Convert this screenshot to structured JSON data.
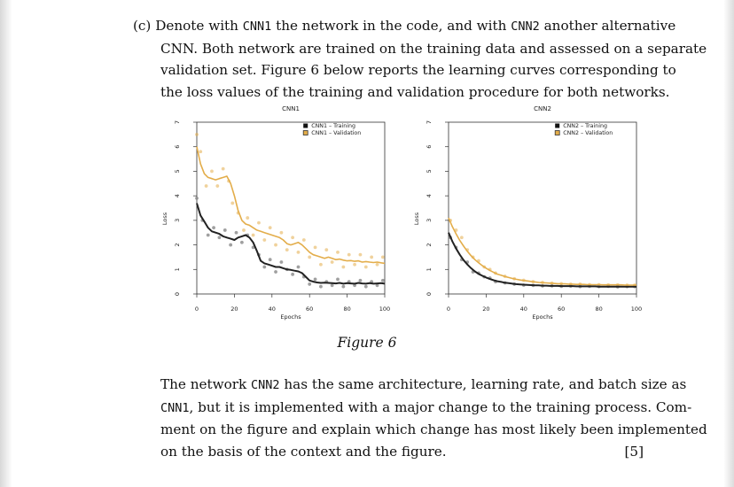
{
  "question": {
    "label": "(c)",
    "lines": [
      [
        "Denote with ",
        "CNN1",
        " the network in the code, and with ",
        "CNN2",
        " another alternative"
      ],
      [
        "CNN. Both network are trained on the training data and assessed on a separate"
      ],
      [
        "validation set.  Figure 6 below reports the learning curves corresponding to"
      ],
      [
        "the loss values of the training and validation procedure for both networks."
      ]
    ]
  },
  "figure": {
    "caption": "Figure 6"
  },
  "chart_data": [
    {
      "type": "line",
      "title": "CNN1",
      "xlabel": "Epochs",
      "ylabel": "Loss",
      "xlim": [
        0,
        100
      ],
      "ylim": [
        0,
        7
      ],
      "xticks": [
        "0",
        "20",
        "40",
        "60",
        "80",
        "100"
      ],
      "yticks": [
        "0",
        "1",
        "2",
        "3",
        "4",
        "5",
        "6",
        "7"
      ],
      "legend_position": "top-right",
      "series": [
        {
          "name": "CNN1 – Training",
          "color": "#222222",
          "marker": "filled-square",
          "x": [
            0,
            2,
            4,
            6,
            8,
            10,
            12,
            14,
            16,
            18,
            20,
            22,
            24,
            26,
            28,
            30,
            32,
            34,
            36,
            38,
            40,
            42,
            44,
            46,
            48,
            50,
            52,
            54,
            56,
            58,
            60,
            62,
            64,
            66,
            68,
            70,
            72,
            74,
            76,
            78,
            80,
            82,
            84,
            86,
            88,
            90,
            92,
            94,
            96,
            98,
            100
          ],
          "y": [
            3.7,
            3.2,
            2.95,
            2.7,
            2.55,
            2.5,
            2.45,
            2.35,
            2.3,
            2.25,
            2.2,
            2.3,
            2.35,
            2.4,
            2.3,
            2.1,
            1.75,
            1.35,
            1.25,
            1.2,
            1.15,
            1.1,
            1.1,
            1.05,
            1.0,
            0.98,
            0.95,
            0.92,
            0.85,
            0.7,
            0.55,
            0.5,
            0.47,
            0.45,
            0.46,
            0.45,
            0.44,
            0.43,
            0.45,
            0.42,
            0.44,
            0.43,
            0.42,
            0.45,
            0.43,
            0.42,
            0.44,
            0.42,
            0.43,
            0.44,
            0.42
          ]
        },
        {
          "name": "CNN1 – Validation",
          "color": "#e3ad4a",
          "marker": "hollow-square",
          "x": [
            0,
            2,
            4,
            6,
            8,
            10,
            12,
            14,
            16,
            18,
            20,
            22,
            24,
            26,
            28,
            30,
            32,
            34,
            36,
            38,
            40,
            42,
            44,
            46,
            48,
            50,
            52,
            54,
            56,
            58,
            60,
            62,
            64,
            66,
            68,
            70,
            72,
            74,
            76,
            78,
            80,
            82,
            84,
            86,
            88,
            90,
            92,
            94,
            96,
            98,
            100
          ],
          "y": [
            6.0,
            5.3,
            4.9,
            4.75,
            4.7,
            4.65,
            4.7,
            4.75,
            4.8,
            4.5,
            4.0,
            3.4,
            3.0,
            2.85,
            2.8,
            2.7,
            2.6,
            2.55,
            2.5,
            2.45,
            2.4,
            2.35,
            2.3,
            2.2,
            2.05,
            2.0,
            2.05,
            2.1,
            2.0,
            1.85,
            1.7,
            1.6,
            1.55,
            1.5,
            1.45,
            1.5,
            1.45,
            1.4,
            1.42,
            1.38,
            1.35,
            1.36,
            1.33,
            1.35,
            1.3,
            1.32,
            1.3,
            1.28,
            1.3,
            1.27,
            1.25
          ]
        }
      ],
      "scatter": {
        "training": [
          [
            0,
            3.9
          ],
          [
            3,
            3.0
          ],
          [
            6,
            2.4
          ],
          [
            9,
            2.7
          ],
          [
            12,
            2.3
          ],
          [
            15,
            2.6
          ],
          [
            18,
            2.0
          ],
          [
            21,
            2.5
          ],
          [
            24,
            2.1
          ],
          [
            27,
            2.4
          ],
          [
            30,
            1.9
          ],
          [
            33,
            1.6
          ],
          [
            36,
            1.1
          ],
          [
            39,
            1.4
          ],
          [
            42,
            0.9
          ],
          [
            45,
            1.3
          ],
          [
            48,
            1.0
          ],
          [
            51,
            0.8
          ],
          [
            54,
            1.1
          ],
          [
            57,
            0.7
          ],
          [
            60,
            0.4
          ],
          [
            63,
            0.6
          ],
          [
            66,
            0.3
          ],
          [
            69,
            0.5
          ],
          [
            72,
            0.35
          ],
          [
            75,
            0.6
          ],
          [
            78,
            0.3
          ],
          [
            81,
            0.5
          ],
          [
            84,
            0.35
          ],
          [
            87,
            0.55
          ],
          [
            90,
            0.3
          ],
          [
            93,
            0.5
          ],
          [
            96,
            0.35
          ],
          [
            99,
            0.55
          ]
        ],
        "validation": [
          [
            0,
            6.5
          ],
          [
            2,
            5.8
          ],
          [
            5,
            4.4
          ],
          [
            8,
            5.0
          ],
          [
            11,
            4.4
          ],
          [
            14,
            5.1
          ],
          [
            17,
            4.6
          ],
          [
            19,
            3.7
          ],
          [
            22,
            3.3
          ],
          [
            25,
            2.6
          ],
          [
            27,
            3.1
          ],
          [
            30,
            2.4
          ],
          [
            33,
            2.9
          ],
          [
            36,
            2.2
          ],
          [
            39,
            2.7
          ],
          [
            42,
            2.0
          ],
          [
            45,
            2.5
          ],
          [
            48,
            1.8
          ],
          [
            51,
            2.3
          ],
          [
            54,
            1.7
          ],
          [
            57,
            2.2
          ],
          [
            60,
            1.5
          ],
          [
            63,
            1.9
          ],
          [
            66,
            1.2
          ],
          [
            69,
            1.8
          ],
          [
            72,
            1.3
          ],
          [
            75,
            1.7
          ],
          [
            78,
            1.1
          ],
          [
            81,
            1.6
          ],
          [
            84,
            1.2
          ],
          [
            87,
            1.6
          ],
          [
            90,
            1.1
          ],
          [
            93,
            1.5
          ],
          [
            96,
            1.2
          ],
          [
            99,
            1.5
          ]
        ]
      }
    },
    {
      "type": "line",
      "title": "CNN2",
      "xlabel": "Epochs",
      "ylabel": "Loss",
      "xlim": [
        0,
        100
      ],
      "ylim": [
        0,
        7
      ],
      "xticks": [
        "0",
        "20",
        "40",
        "60",
        "80",
        "100"
      ],
      "yticks": [
        "0",
        "1",
        "2",
        "3",
        "4",
        "5",
        "6",
        "7"
      ],
      "legend_position": "top-right",
      "series": [
        {
          "name": "CNN2 – Training",
          "color": "#222222",
          "marker": "filled-square",
          "x": [
            0,
            2,
            4,
            6,
            8,
            10,
            12,
            14,
            16,
            18,
            20,
            22,
            24,
            26,
            28,
            30,
            32,
            34,
            36,
            38,
            40,
            42,
            44,
            46,
            48,
            50,
            52,
            54,
            56,
            58,
            60,
            62,
            64,
            66,
            68,
            70,
            72,
            74,
            76,
            78,
            80,
            82,
            84,
            86,
            88,
            90,
            92,
            94,
            96,
            98,
            100
          ],
          "y": [
            2.5,
            2.15,
            1.85,
            1.6,
            1.38,
            1.2,
            1.05,
            0.92,
            0.82,
            0.74,
            0.67,
            0.61,
            0.56,
            0.52,
            0.49,
            0.46,
            0.44,
            0.42,
            0.4,
            0.39,
            0.38,
            0.37,
            0.36,
            0.35,
            0.35,
            0.34,
            0.34,
            0.33,
            0.33,
            0.33,
            0.32,
            0.32,
            0.32,
            0.32,
            0.31,
            0.31,
            0.31,
            0.31,
            0.31,
            0.31,
            0.3,
            0.3,
            0.3,
            0.3,
            0.3,
            0.3,
            0.3,
            0.3,
            0.3,
            0.3,
            0.3
          ]
        },
        {
          "name": "CNN2 – Validation",
          "color": "#e3ad4a",
          "marker": "hollow-square",
          "x": [
            0,
            2,
            4,
            6,
            8,
            10,
            12,
            14,
            16,
            18,
            20,
            22,
            24,
            26,
            28,
            30,
            32,
            34,
            36,
            38,
            40,
            42,
            44,
            46,
            48,
            50,
            52,
            54,
            56,
            58,
            60,
            62,
            64,
            66,
            68,
            70,
            72,
            74,
            76,
            78,
            80,
            82,
            84,
            86,
            88,
            90,
            92,
            94,
            96,
            98,
            100
          ],
          "y": [
            3.1,
            2.75,
            2.45,
            2.18,
            1.95,
            1.74,
            1.56,
            1.4,
            1.27,
            1.15,
            1.05,
            0.96,
            0.88,
            0.81,
            0.76,
            0.71,
            0.67,
            0.63,
            0.6,
            0.57,
            0.55,
            0.53,
            0.51,
            0.49,
            0.47,
            0.46,
            0.45,
            0.44,
            0.43,
            0.42,
            0.41,
            0.41,
            0.4,
            0.4,
            0.39,
            0.39,
            0.39,
            0.38,
            0.38,
            0.38,
            0.38,
            0.37,
            0.37,
            0.37,
            0.37,
            0.37,
            0.37,
            0.36,
            0.36,
            0.36,
            0.36
          ]
        }
      ],
      "scatter": {
        "training": [
          [
            1,
            2.3
          ],
          [
            4,
            1.9
          ],
          [
            7,
            1.4
          ],
          [
            10,
            1.3
          ],
          [
            13,
            0.9
          ],
          [
            16,
            0.85
          ],
          [
            19,
            0.7
          ],
          [
            22,
            0.65
          ],
          [
            25,
            0.5
          ],
          [
            30,
            0.45
          ],
          [
            35,
            0.4
          ],
          [
            40,
            0.36
          ],
          [
            45,
            0.35
          ],
          [
            50,
            0.33
          ],
          [
            55,
            0.33
          ],
          [
            60,
            0.31
          ],
          [
            65,
            0.32
          ],
          [
            70,
            0.3
          ],
          [
            75,
            0.31
          ],
          [
            80,
            0.3
          ],
          [
            85,
            0.31
          ],
          [
            90,
            0.29
          ],
          [
            95,
            0.3
          ],
          [
            99,
            0.3
          ]
        ],
        "validation": [
          [
            1,
            3.0
          ],
          [
            4,
            2.6
          ],
          [
            7,
            2.3
          ],
          [
            10,
            1.8
          ],
          [
            13,
            1.5
          ],
          [
            16,
            1.35
          ],
          [
            19,
            1.1
          ],
          [
            22,
            1.0
          ],
          [
            25,
            0.85
          ],
          [
            30,
            0.72
          ],
          [
            35,
            0.62
          ],
          [
            40,
            0.56
          ],
          [
            45,
            0.5
          ],
          [
            50,
            0.47
          ],
          [
            55,
            0.44
          ],
          [
            60,
            0.42
          ],
          [
            65,
            0.4
          ],
          [
            70,
            0.4
          ],
          [
            75,
            0.38
          ],
          [
            80,
            0.38
          ],
          [
            85,
            0.37
          ],
          [
            90,
            0.37
          ],
          [
            95,
            0.36
          ],
          [
            99,
            0.36
          ]
        ]
      }
    }
  ],
  "body": {
    "lines": [
      [
        "The network ",
        "CNN2",
        " has the same architecture, learning rate, and batch size as"
      ],
      [
        "CNN1",
        ", but it is implemented with a major change to the training process.  Com-"
      ],
      [
        "ment on the figure and explain which change has most likely been implemented"
      ],
      [
        "on the basis of the context and the figure."
      ]
    ],
    "marks": "[5]"
  }
}
